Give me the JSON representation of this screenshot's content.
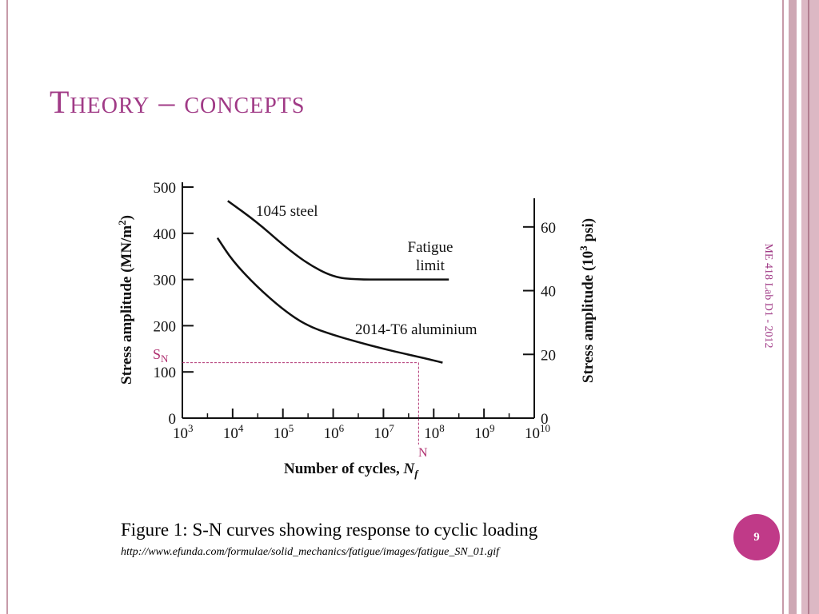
{
  "slide": {
    "title": "Theory – concepts",
    "footer_vertical": "ME 418 Lab D1 - 2012",
    "page_number": "9",
    "caption": "Figure 1: S-N curves showing response to cyclic loading",
    "source_url": "http://www.efunda.com/formulae/solid_mechanics/fatigue/images/fatigue_SN_01.gif"
  },
  "colors": {
    "title": "#a03a86",
    "badge": "#c03a88",
    "annotation": "#b03070",
    "curve": "#111111"
  },
  "chart_data": {
    "type": "line",
    "xlabel": "Number of cycles, Nf",
    "ylabel": "Stress amplitude (MN/m2)",
    "y2label": "Stress amplitude (10^3 psi)",
    "x_scale": "log",
    "xlim": [
      1000,
      10000000000
    ],
    "ylim": [
      0,
      500
    ],
    "y2lim": [
      0,
      72.5
    ],
    "x_tick_labels": [
      "10^3",
      "10^4",
      "10^5",
      "10^6",
      "10^7",
      "10^8",
      "10^9",
      "10^10"
    ],
    "y_ticks": [
      0,
      100,
      200,
      300,
      400,
      500
    ],
    "y2_ticks": [
      0,
      20,
      40,
      60
    ],
    "grid": false,
    "series": [
      {
        "name": "1045 steel",
        "x": [
          8000,
          30000,
          100000,
          300000,
          1000000,
          3000000,
          10000000,
          100000000,
          200000000
        ],
        "y": [
          470,
          425,
          375,
          335,
          305,
          300,
          300,
          300,
          300
        ]
      },
      {
        "name": "2014-T6 aluminium",
        "x": [
          5000,
          10000,
          30000,
          100000,
          300000,
          1000000,
          3000000,
          10000000,
          30000000,
          100000000,
          150000000
        ],
        "y": [
          390,
          340,
          285,
          235,
          200,
          180,
          165,
          150,
          138,
          125,
          120
        ]
      }
    ],
    "annotations": {
      "fatigue_limit": "Fatigue limit",
      "sn_marker": "S_N",
      "n_marker": "N",
      "sn_value": 120,
      "n_value": 50000000
    }
  }
}
